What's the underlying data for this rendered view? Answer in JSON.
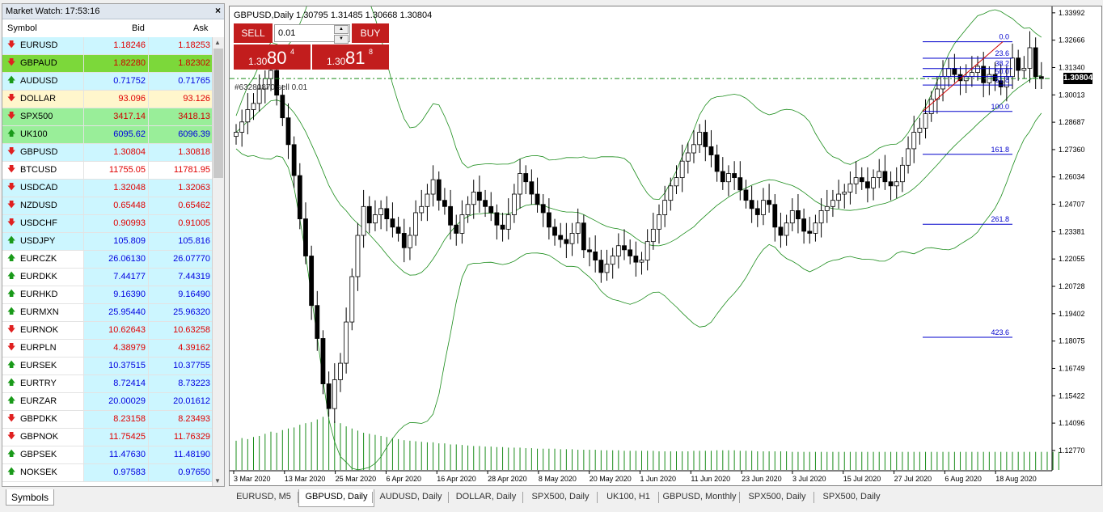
{
  "market_watch": {
    "title": "Market Watch: 17:53:16",
    "close_glyph": "×",
    "columns": {
      "symbol": "Symbol",
      "bid": "Bid",
      "ask": "Ask"
    },
    "rows": [
      {
        "symbol": "EURUSD",
        "bid": "1.18246",
        "ask": "1.18253",
        "dir": "down",
        "bid_color": "#e00000",
        "ask_color": "#e00000",
        "bg": "#ccf6ff",
        "sym_bg": "#ccf6ff"
      },
      {
        "symbol": "GBPAUD",
        "bid": "1.82280",
        "ask": "1.82302",
        "dir": "down",
        "bid_color": "#d00000",
        "ask_color": "#d00000",
        "bg": "#7cd83a",
        "sym_bg": "#7cd83a"
      },
      {
        "symbol": "AUDUSD",
        "bid": "0.71752",
        "ask": "0.71765",
        "dir": "up",
        "bid_color": "#0000e0",
        "ask_color": "#0000e0",
        "bg": "#ccf6ff",
        "sym_bg": "#ccf6ff"
      },
      {
        "symbol": "DOLLAR",
        "bid": "93.096",
        "ask": "93.126",
        "dir": "down",
        "bid_color": "#e00000",
        "ask_color": "#e00000",
        "bg": "#fff6cc",
        "sym_bg": "#fff6cc"
      },
      {
        "symbol": "SPX500",
        "bid": "3417.14",
        "ask": "3418.13",
        "dir": "down",
        "bid_color": "#d00000",
        "ask_color": "#d00000",
        "bg": "#99ee99",
        "sym_bg": "#99ee99"
      },
      {
        "symbol": "UK100",
        "bid": "6095.62",
        "ask": "6096.39",
        "dir": "up",
        "bid_color": "#0000e0",
        "ask_color": "#0000e0",
        "bg": "#99ee99",
        "sym_bg": "#99ee99"
      },
      {
        "symbol": "GBPUSD",
        "bid": "1.30804",
        "ask": "1.30818",
        "dir": "down",
        "bid_color": "#e00000",
        "ask_color": "#e00000",
        "bg": "#ccf6ff",
        "sym_bg": "#ccf6ff"
      },
      {
        "symbol": "BTCUSD",
        "bid": "11755.05",
        "ask": "11781.95",
        "dir": "down",
        "bid_color": "#e00000",
        "ask_color": "#e00000",
        "bg": "#ffffff",
        "sym_bg": "#ffffff"
      },
      {
        "symbol": "USDCAD",
        "bid": "1.32048",
        "ask": "1.32063",
        "dir": "down",
        "bid_color": "#e00000",
        "ask_color": "#e00000",
        "bg": "#ccf6ff",
        "sym_bg": "#ccf6ff"
      },
      {
        "symbol": "NZDUSD",
        "bid": "0.65448",
        "ask": "0.65462",
        "dir": "down",
        "bid_color": "#e00000",
        "ask_color": "#e00000",
        "bg": "#ccf6ff",
        "sym_bg": "#ccf6ff"
      },
      {
        "symbol": "USDCHF",
        "bid": "0.90993",
        "ask": "0.91005",
        "dir": "down",
        "bid_color": "#e00000",
        "ask_color": "#e00000",
        "bg": "#ccf6ff",
        "sym_bg": "#ccf6ff"
      },
      {
        "symbol": "USDJPY",
        "bid": "105.809",
        "ask": "105.816",
        "dir": "up",
        "bid_color": "#0000e0",
        "ask_color": "#0000e0",
        "bg": "#ccf6ff",
        "sym_bg": "#ccf6ff"
      },
      {
        "symbol": "EURCZK",
        "bid": "26.06130",
        "ask": "26.07770",
        "dir": "up",
        "bid_color": "#0000e0",
        "ask_color": "#0000e0",
        "bg": "#ccf6ff",
        "sym_bg": "#ffffff"
      },
      {
        "symbol": "EURDKK",
        "bid": "7.44177",
        "ask": "7.44319",
        "dir": "up",
        "bid_color": "#0000e0",
        "ask_color": "#0000e0",
        "bg": "#ccf6ff",
        "sym_bg": "#ffffff"
      },
      {
        "symbol": "EURHKD",
        "bid": "9.16390",
        "ask": "9.16490",
        "dir": "up",
        "bid_color": "#0000e0",
        "ask_color": "#0000e0",
        "bg": "#ccf6ff",
        "sym_bg": "#ffffff"
      },
      {
        "symbol": "EURMXN",
        "bid": "25.95440",
        "ask": "25.96320",
        "dir": "up",
        "bid_color": "#0000e0",
        "ask_color": "#0000e0",
        "bg": "#ccf6ff",
        "sym_bg": "#ffffff"
      },
      {
        "symbol": "EURNOK",
        "bid": "10.62643",
        "ask": "10.63258",
        "dir": "down",
        "bid_color": "#e00000",
        "ask_color": "#e00000",
        "bg": "#ccf6ff",
        "sym_bg": "#ffffff"
      },
      {
        "symbol": "EURPLN",
        "bid": "4.38979",
        "ask": "4.39162",
        "dir": "down",
        "bid_color": "#e00000",
        "ask_color": "#e00000",
        "bg": "#ccf6ff",
        "sym_bg": "#ffffff"
      },
      {
        "symbol": "EURSEK",
        "bid": "10.37515",
        "ask": "10.37755",
        "dir": "up",
        "bid_color": "#0000e0",
        "ask_color": "#0000e0",
        "bg": "#ccf6ff",
        "sym_bg": "#ffffff"
      },
      {
        "symbol": "EURTRY",
        "bid": "8.72414",
        "ask": "8.73223",
        "dir": "up",
        "bid_color": "#0000e0",
        "ask_color": "#0000e0",
        "bg": "#ccf6ff",
        "sym_bg": "#ffffff"
      },
      {
        "symbol": "EURZAR",
        "bid": "20.00029",
        "ask": "20.01612",
        "dir": "up",
        "bid_color": "#0000e0",
        "ask_color": "#0000e0",
        "bg": "#ccf6ff",
        "sym_bg": "#ffffff"
      },
      {
        "symbol": "GBPDKK",
        "bid": "8.23158",
        "ask": "8.23493",
        "dir": "down",
        "bid_color": "#e00000",
        "ask_color": "#e00000",
        "bg": "#ccf6ff",
        "sym_bg": "#ffffff"
      },
      {
        "symbol": "GBPNOK",
        "bid": "11.75425",
        "ask": "11.76329",
        "dir": "down",
        "bid_color": "#e00000",
        "ask_color": "#e00000",
        "bg": "#ccf6ff",
        "sym_bg": "#ffffff"
      },
      {
        "symbol": "GBPSEK",
        "bid": "11.47630",
        "ask": "11.48190",
        "dir": "up",
        "bid_color": "#0000e0",
        "ask_color": "#0000e0",
        "bg": "#ccf6ff",
        "sym_bg": "#ffffff"
      },
      {
        "symbol": "NOKSEK",
        "bid": "0.97583",
        "ask": "0.97650",
        "dir": "up",
        "bid_color": "#0000e0",
        "ask_color": "#0000e0",
        "bg": "#ccf6ff",
        "sym_bg": "#ffffff"
      }
    ],
    "tab_label": "Symbols"
  },
  "chart": {
    "title": "GBPUSD,Daily  1.30795 1.31485 1.30668 1.30804",
    "sell_label": "SELL",
    "buy_label": "BUY",
    "lot_value": "0.01",
    "sell_price": {
      "prefix": "1.30",
      "big": "80",
      "small": "4"
    },
    "buy_price": {
      "prefix": "1.30",
      "big": "81",
      "small": "8"
    },
    "trade_label": "#63280870 sell 0.01",
    "current_price": "1.30804",
    "up_color": "#000000",
    "down_color": "#000000",
    "band_color": "#1a8c1a",
    "volume_color": "#1a8c1a",
    "fib_color": "#0000cc",
    "trend_color": "#cc0000"
  },
  "chart_data": {
    "type": "candlestick",
    "symbol": "GBPUSD",
    "timeframe": "Daily",
    "ohlc_header": {
      "open": 1.30795,
      "high": 1.31485,
      "low": 1.30668,
      "close": 1.30804
    },
    "y_ticks": [
      "1.33992",
      "1.32666",
      "1.31340",
      "1.30013",
      "1.28687",
      "1.27360",
      "1.26034",
      "1.24707",
      "1.23381",
      "1.22055",
      "1.20728",
      "1.19402",
      "1.18075",
      "1.16749",
      "1.15422",
      "1.14096",
      "1.12770"
    ],
    "ylim": [
      1.121,
      1.343
    ],
    "x_ticks": [
      "3 Mar 2020",
      "13 Mar 2020",
      "25 Mar 2020",
      "6 Apr 2020",
      "16 Apr 2020",
      "28 Apr 2020",
      "8 May 2020",
      "20 May 2020",
      "1 Jun 2020",
      "11 Jun 2020",
      "23 Jun 2020",
      "3 Jul 2020",
      "15 Jul 2020",
      "27 Jul 2020",
      "6 Aug 2020",
      "18 Aug 2020"
    ],
    "close_series": [
      1.282,
      1.287,
      1.293,
      1.296,
      1.303,
      1.308,
      1.312,
      1.3,
      1.289,
      1.276,
      1.261,
      1.24,
      1.222,
      1.198,
      1.182,
      1.16,
      1.148,
      1.162,
      1.17,
      1.19,
      1.212,
      1.232,
      1.246,
      1.238,
      1.242,
      1.245,
      1.24,
      1.236,
      1.233,
      1.226,
      1.232,
      1.243,
      1.246,
      1.252,
      1.259,
      1.249,
      1.246,
      1.237,
      1.233,
      1.242,
      1.247,
      1.253,
      1.249,
      1.246,
      1.243,
      1.237,
      1.235,
      1.242,
      1.252,
      1.262,
      1.258,
      1.252,
      1.247,
      1.243,
      1.236,
      1.232,
      1.23,
      1.228,
      1.233,
      1.238,
      1.225,
      1.224,
      1.22,
      1.214,
      1.218,
      1.222,
      1.227,
      1.225,
      1.222,
      1.219,
      1.22,
      1.229,
      1.235,
      1.242,
      1.249,
      1.256,
      1.26,
      1.268,
      1.272,
      1.276,
      1.282,
      1.275,
      1.271,
      1.263,
      1.258,
      1.262,
      1.26,
      1.254,
      1.249,
      1.245,
      1.242,
      1.249,
      1.247,
      1.236,
      1.232,
      1.238,
      1.244,
      1.24,
      1.234,
      1.233,
      1.238,
      1.244,
      1.246,
      1.249,
      1.252,
      1.253,
      1.257,
      1.26,
      1.258,
      1.255,
      1.26,
      1.263,
      1.258,
      1.256,
      1.258,
      1.266,
      1.274,
      1.282,
      1.284,
      1.291,
      1.298,
      1.303,
      1.309,
      1.313,
      1.31,
      1.307,
      1.309,
      1.311,
      1.314,
      1.306,
      1.31,
      1.307,
      1.304,
      1.309,
      1.318,
      1.312,
      1.313,
      1.323,
      1.309,
      1.308
    ],
    "volume_series": [
      0.55,
      0.6,
      0.58,
      0.62,
      0.64,
      0.68,
      0.72,
      0.7,
      0.75,
      0.78,
      0.8,
      0.85,
      0.88,
      0.9,
      0.95,
      1.0,
      0.98,
      0.92,
      0.88,
      0.82,
      0.78,
      0.74,
      0.7,
      0.68,
      0.66,
      0.64,
      0.62,
      0.6,
      0.58,
      0.56,
      0.55,
      0.54,
      0.53,
      0.52,
      0.52,
      0.5,
      0.5,
      0.48,
      0.48,
      0.47,
      0.46,
      0.45,
      0.45,
      0.44,
      0.44,
      0.43,
      0.43,
      0.42,
      0.42,
      0.42,
      0.41,
      0.41,
      0.4,
      0.4,
      0.4,
      0.4,
      0.39,
      0.39,
      0.39,
      0.38,
      0.38,
      0.38,
      0.38,
      0.37,
      0.37,
      0.37,
      0.37,
      0.36,
      0.36,
      0.36,
      0.36,
      0.36,
      0.36,
      0.35,
      0.35,
      0.35,
      0.35,
      0.35,
      0.35,
      0.36,
      0.36,
      0.36,
      0.36,
      0.37,
      0.37,
      0.37,
      0.37,
      0.36,
      0.36,
      0.36,
      0.35,
      0.35,
      0.35,
      0.35,
      0.35,
      0.35,
      0.34,
      0.34,
      0.34,
      0.34,
      0.34,
      0.34,
      0.34,
      0.34,
      0.34,
      0.34,
      0.34,
      0.34,
      0.34,
      0.34,
      0.34,
      0.34,
      0.34,
      0.34,
      0.34,
      0.34,
      0.34,
      0.34,
      0.34,
      0.34,
      0.34,
      0.34,
      0.34,
      0.34,
      0.34,
      0.34,
      0.34,
      0.34,
      0.34,
      0.34,
      0.34,
      0.34,
      0.34,
      0.34,
      0.34,
      0.34,
      0.34,
      0.34,
      0.34,
      0.34,
      0.34,
      0.34,
      0.34
    ],
    "fib_levels": [
      {
        "label": "0.0",
        "value": 1.3259
      },
      {
        "label": "23.6",
        "value": 1.3179
      },
      {
        "label": "38.2",
        "value": 1.3129
      },
      {
        "label": "50.0",
        "value": 1.309
      },
      {
        "label": "61.8",
        "value": 1.3049
      },
      {
        "label": "100.0",
        "value": 1.2921
      },
      {
        "label": "161.8",
        "value": 1.2713
      },
      {
        "label": "261.8",
        "value": 1.2374
      },
      {
        "label": "423.6",
        "value": 1.1826
      }
    ]
  },
  "tabs": [
    {
      "label": "EURUSD, M5",
      "active": false
    },
    {
      "label": "GBPUSD, Daily",
      "active": true
    },
    {
      "label": "AUDUSD, Daily",
      "active": false
    },
    {
      "label": "DOLLAR, Daily",
      "active": false
    },
    {
      "label": "SPX500, Daily",
      "active": false
    },
    {
      "label": "UK100, H1",
      "active": false
    },
    {
      "label": "GBPUSD, Monthly",
      "active": false
    },
    {
      "label": "SPX500, Daily",
      "active": false
    },
    {
      "label": "SPX500, Daily",
      "active": false
    }
  ]
}
